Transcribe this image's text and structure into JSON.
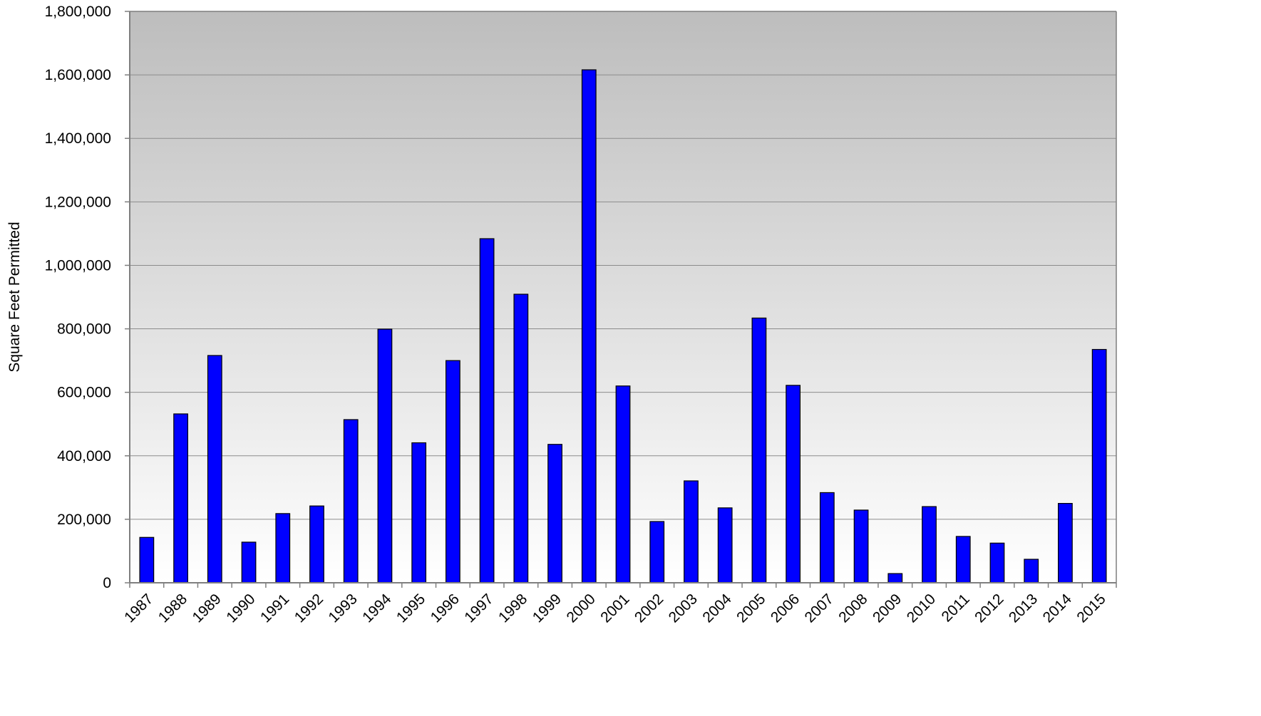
{
  "chart_data": {
    "type": "bar",
    "title": "",
    "xlabel": "",
    "ylabel": "Square Feet Permitted",
    "ylim": [
      0,
      1800000
    ],
    "yticks": [
      0,
      200000,
      400000,
      600000,
      800000,
      1000000,
      1200000,
      1400000,
      1600000,
      1800000
    ],
    "ytick_labels": [
      "0",
      "200,000",
      "400,000",
      "600,000",
      "800,000",
      "1,000,000",
      "1,200,000",
      "1,400,000",
      "1,600,000",
      "1,800,000"
    ],
    "grid": "horizontal",
    "legend": "none",
    "categories": [
      "1987",
      "1988",
      "1989",
      "1990",
      "1991",
      "1992",
      "1993",
      "1994",
      "1995",
      "1996",
      "1997",
      "1998",
      "1999",
      "2000",
      "2001",
      "2002",
      "2003",
      "2004",
      "2005",
      "2006",
      "2007",
      "2008",
      "2009",
      "2010",
      "2011",
      "2012",
      "2013",
      "2014",
      "2015"
    ],
    "values": [
      143000,
      532000,
      716000,
      128000,
      218000,
      242000,
      514000,
      799000,
      441000,
      700000,
      1084000,
      909000,
      436000,
      1616000,
      620000,
      193000,
      321000,
      236000,
      834000,
      622000,
      284000,
      229000,
      29000,
      240000,
      146000,
      125000,
      74000,
      250000,
      735000
    ],
    "colors": {
      "bar_fill": "#0000ff",
      "bar_stroke": "#000000",
      "plot_bg_top": "#bdbdbd",
      "plot_bg_bottom": "#ffffff",
      "gridline": "#8c8c8c",
      "axis": "#7f7f7f"
    }
  }
}
